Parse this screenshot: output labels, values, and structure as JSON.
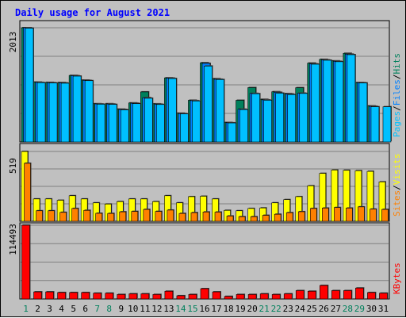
{
  "colors": {
    "background": "#c0c0c0",
    "plot": "#c0c0c0",
    "grid": "#808080",
    "hits": "#00805c",
    "files": "#0080ff",
    "pages": "#00c0ff",
    "visits": "#ffff00",
    "sites": "#ff8000",
    "kbytes": "#ff0000",
    "title": "#0000ff",
    "weekend_day": "#00805c",
    "weekday": "#000000"
  },
  "chart_data": {
    "type": "bar",
    "title": "Daily usage for August 2021",
    "categories": [
      "1",
      "2",
      "3",
      "4",
      "5",
      "6",
      "7",
      "8",
      "9",
      "10",
      "11",
      "12",
      "13",
      "14",
      "15",
      "16",
      "17",
      "18",
      "19",
      "20",
      "21",
      "22",
      "23",
      "24",
      "25",
      "26",
      "27",
      "28",
      "29",
      "30",
      "31"
    ],
    "weekend_days": [
      "1",
      "7",
      "8",
      "14",
      "15",
      "21",
      "22",
      "28",
      "29"
    ],
    "panels": [
      {
        "key": "top",
        "max_label": "2013",
        "max": 2013,
        "legend": [
          {
            "text": "Hits",
            "color": "#00805c"
          },
          {
            "text": "/",
            "color": "#000000"
          },
          {
            "text": "Files",
            "color": "#0080ff"
          },
          {
            "text": "/",
            "color": "#000000"
          },
          {
            "text": "Pages",
            "color": "#00c0ff"
          }
        ],
        "series": [
          {
            "name": "Hits",
            "color": "#00805c",
            "values": [
              2013,
              1055,
              1050,
              1048,
              1173,
              1090,
              674,
              674,
              578,
              688,
              882,
              672,
              1130,
              507,
              735,
              1396,
              1115,
              343,
              734,
              958,
              751,
              885,
              852,
              956,
              1390,
              1456,
              1429,
              1562,
              1047,
              635,
              0
            ]
          },
          {
            "name": "Files",
            "color": "#0080ff",
            "values": [
              2013,
              1050,
              1045,
              1042,
              1168,
              1085,
              670,
              668,
              572,
              682,
              780,
              665,
              1125,
              500,
              728,
              1385,
              1105,
              338,
              578,
              856,
              742,
              875,
              845,
              860,
              1376,
              1446,
              1421,
              1548,
              1045,
              628,
              0
            ]
          },
          {
            "name": "Pages",
            "color": "#00c0ff",
            "values": [
              2005,
              1045,
              1040,
              1035,
              1160,
              1080,
              665,
              662,
              565,
              675,
              770,
              660,
              1118,
              495,
              722,
              1338,
              1100,
              335,
              570,
              850,
              735,
              860,
              835,
              855,
              1370,
              1440,
              1414,
              1538,
              1040,
              620,
              620
            ]
          }
        ]
      },
      {
        "key": "middle",
        "max_label": "519",
        "max": 519,
        "legend": [
          {
            "text": "Visits",
            "color": "#ffff00"
          },
          {
            "text": "/",
            "color": "#000000"
          },
          {
            "text": "Sites",
            "color": "#ff8000"
          }
        ],
        "series": [
          {
            "name": "Visits",
            "color": "#ffff00",
            "values": [
              519,
              166,
              166,
              156,
              190,
              166,
              137,
              128,
              146,
              166,
              166,
              146,
              190,
              137,
              183,
              186,
              166,
              81,
              78,
              95,
              99,
              137,
              161,
              183,
              264,
              356,
              381,
              379,
              376,
              371,
              293
            ]
          },
          {
            "name": "Sites",
            "color": "#ff8000",
            "values": [
              431,
              78,
              78,
              66,
              95,
              81,
              59,
              58,
              70,
              73,
              88,
              73,
              83,
              58,
              64,
              69,
              68,
              39,
              34,
              34,
              44,
              52,
              64,
              71,
              95,
              98,
              102,
              98,
              107,
              90,
              88
            ]
          }
        ]
      },
      {
        "key": "bottom",
        "max_label": "114493",
        "max": 114493,
        "legend": [
          {
            "text": "KBytes",
            "color": "#ff0000"
          }
        ],
        "series": [
          {
            "name": "KBytes",
            "color": "#ff0000",
            "values": [
              114493,
              11000,
              11000,
              10000,
              10000,
              10000,
              9000,
              9000,
              7000,
              8000,
              8000,
              7000,
              12000,
              5000,
              7000,
              16000,
              11000,
              4000,
              7000,
              7000,
              8000,
              7000,
              8000,
              13000,
              12000,
              21000,
              13000,
              13000,
              17000,
              10000,
              9000
            ]
          }
        ]
      }
    ]
  }
}
